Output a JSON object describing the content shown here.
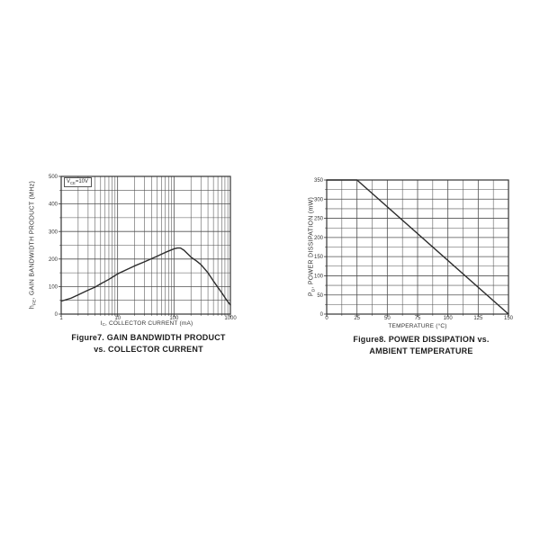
{
  "colors": {
    "background": "#ffffff",
    "grid": "#505050",
    "frame": "#333333",
    "curve": "#2c2c2c",
    "text": "#343434"
  },
  "chart_data": [
    {
      "type": "line",
      "title": "Figure7. GAIN BANDWIDTH PRODUCT vs. COLLECTOR CURRENT",
      "caption_line1": "Figure7. GAIN BANDWIDTH PRODUCT",
      "caption_line2": "vs. COLLECTOR CURRENT",
      "annotation": {
        "pre": "V",
        "sub": "CE",
        "post": "=10V"
      },
      "xlabel": {
        "pre": "I",
        "sub": "C",
        "post": ", COLLECTOR CURRENT (mA)"
      },
      "ylabel": {
        "pre": "h",
        "sub": "FE",
        "post": ", GAIN BANDWIDTH PRODUCT (MHz)"
      },
      "x_scale": "log",
      "xlim": [
        1,
        1000
      ],
      "x_tick_values": [
        1,
        10,
        100,
        1000
      ],
      "x_tick_labels": [
        "1",
        "10",
        "100",
        "1000"
      ],
      "ylim": [
        0,
        500
      ],
      "y_tick_values": [
        0,
        100,
        200,
        300,
        400,
        500
      ],
      "y_tick_labels": [
        "0",
        "100",
        "200",
        "300",
        "400",
        "500"
      ],
      "y_minor_step": 50,
      "grid": true,
      "legend": false,
      "series": [
        {
          "name": "gain-bandwidth-product",
          "points": [
            [
              1,
              47
            ],
            [
              1.5,
              58
            ],
            [
              2,
              70
            ],
            [
              3,
              87
            ],
            [
              4,
              98
            ],
            [
              5,
              110
            ],
            [
              7,
              126
            ],
            [
              10,
              146
            ],
            [
              15,
              163
            ],
            [
              20,
              175
            ],
            [
              30,
              190
            ],
            [
              50,
              210
            ],
            [
              70,
              224
            ],
            [
              100,
              237
            ],
            [
              115,
              240
            ],
            [
              130,
              240
            ],
            [
              150,
              232
            ],
            [
              200,
              207
            ],
            [
              250,
              193
            ],
            [
              300,
              180
            ],
            [
              400,
              150
            ],
            [
              500,
              120
            ],
            [
              600,
              97
            ],
            [
              700,
              78
            ],
            [
              850,
              52
            ],
            [
              1000,
              33
            ]
          ]
        }
      ]
    },
    {
      "type": "line",
      "title": "Figure8. POWER DISSIPATION vs. AMBIENT TEMPERATURE",
      "caption_line1": "Figure8. POWER DISSIPATION vs.",
      "caption_line2": "AMBIENT TEMPERATURE",
      "annotation": null,
      "xlabel": {
        "pre": "",
        "sub": "",
        "post": "TEMPERATURE (°C)"
      },
      "ylabel": {
        "pre": "P",
        "sub": "D",
        "post": ", POWER DISSIPATION (mW)"
      },
      "x_scale": "linear",
      "xlim": [
        0,
        150
      ],
      "x_tick_values": [
        0,
        25,
        50,
        75,
        100,
        125,
        150
      ],
      "x_tick_labels": [
        "0",
        "25",
        "50",
        "75",
        "100",
        "125",
        "150"
      ],
      "x_minor_step": 12.5,
      "ylim": [
        0,
        350
      ],
      "y_tick_values": [
        0,
        50,
        100,
        150,
        200,
        250,
        300,
        350
      ],
      "y_tick_labels": [
        "0",
        "50",
        "100",
        "150",
        "200",
        "250",
        "300",
        "350"
      ],
      "y_minor_step": 25,
      "grid": true,
      "legend": false,
      "series": [
        {
          "name": "power-dissipation",
          "points": [
            [
              0,
              350
            ],
            [
              25,
              350
            ],
            [
              150,
              0
            ]
          ]
        }
      ]
    }
  ]
}
